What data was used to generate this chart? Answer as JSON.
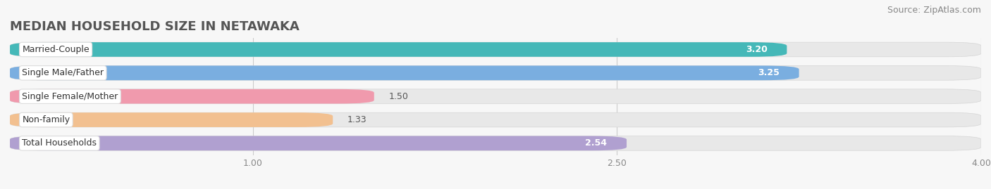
{
  "title": "MEDIAN HOUSEHOLD SIZE IN NETAWAKA",
  "source": "Source: ZipAtlas.com",
  "categories": [
    "Married-Couple",
    "Single Male/Father",
    "Single Female/Mother",
    "Non-family",
    "Total Households"
  ],
  "values": [
    3.2,
    3.25,
    1.5,
    1.33,
    2.54
  ],
  "colors": [
    "#45b8b8",
    "#7aaee0",
    "#f09aad",
    "#f2c090",
    "#b0a0d0"
  ],
  "xlim": [
    0,
    4.0
  ],
  "xticks": [
    1.0,
    2.5,
    4.0
  ],
  "xtick_labels": [
    "1.00",
    "2.50",
    "4.00"
  ],
  "bar_height": 0.62,
  "background_color": "#f7f7f7",
  "bar_bg_color": "#e8e8e8",
  "title_fontsize": 13,
  "label_fontsize": 9,
  "value_fontsize": 9,
  "source_fontsize": 9
}
